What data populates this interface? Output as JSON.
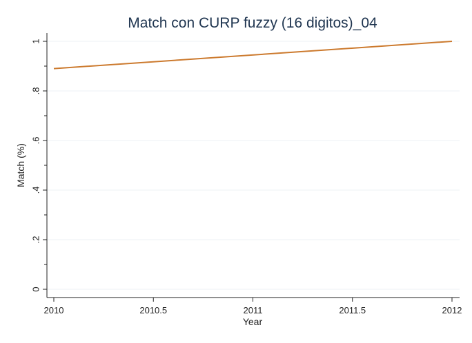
{
  "chart_data": {
    "type": "line",
    "title": "Match con CURP fuzzy (16 digitos)_04",
    "xlabel": "Year",
    "ylabel": "Match (%)",
    "xlim": [
      2010,
      2012
    ],
    "ylim": [
      0,
      1
    ],
    "x_ticks": [
      2010,
      2010.5,
      2011,
      2011.5,
      2012
    ],
    "x_tick_labels": [
      "2010",
      "2010.5",
      "2011",
      "2011.5",
      "2012"
    ],
    "y_ticks": [
      0,
      0.2,
      0.4,
      0.6,
      0.8,
      1
    ],
    "y_tick_labels": [
      "0",
      ".2",
      ".4",
      ".6",
      ".8",
      "1"
    ],
    "grid": true,
    "series": [
      {
        "color": "#cc7a2e",
        "x": [
          2010,
          2012
        ],
        "y": [
          0.89,
          1.0
        ]
      }
    ]
  }
}
